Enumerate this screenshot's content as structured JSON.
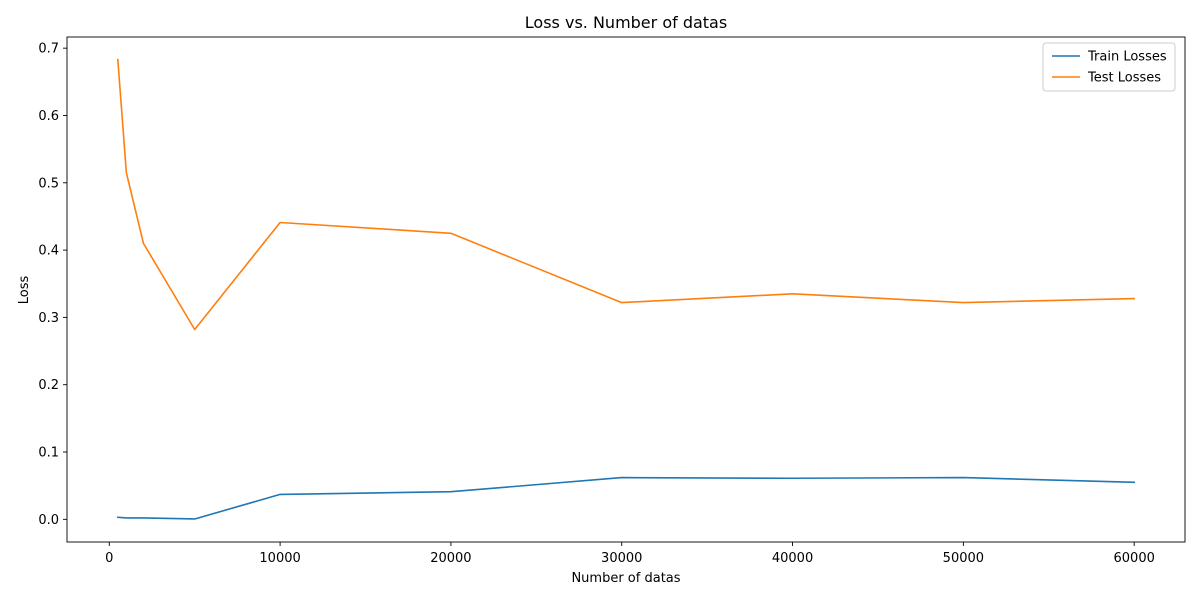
{
  "chart_data": {
    "type": "line",
    "title": "Loss vs. Number of datas",
    "xlabel": "Number of datas",
    "ylabel": "Loss",
    "x": [
      500,
      1000,
      2000,
      5000,
      10000,
      20000,
      30000,
      40000,
      50000,
      60000
    ],
    "series": [
      {
        "name": "Train Losses",
        "color": "#1f77b4",
        "values": [
          0.003,
          0.002,
          0.002,
          0.0005,
          0.037,
          0.041,
          0.062,
          0.061,
          0.062,
          0.055
        ]
      },
      {
        "name": "Test Losses",
        "color": "#ff7f0e",
        "values": [
          0.683,
          0.515,
          0.41,
          0.282,
          0.441,
          0.425,
          0.322,
          0.335,
          0.322,
          0.328
        ]
      }
    ],
    "xlim": [
      -2475,
      62975
    ],
    "ylim": [
      -0.0337,
      0.7166
    ],
    "xticks": [
      0,
      10000,
      20000,
      30000,
      40000,
      50000,
      60000
    ],
    "yticks": [
      0.0,
      0.1,
      0.2,
      0.3,
      0.4,
      0.5,
      0.6,
      0.7
    ],
    "xtick_labels": [
      "0",
      "10000",
      "20000",
      "30000",
      "40000",
      "50000",
      "60000"
    ],
    "ytick_labels": [
      "0.0",
      "0.1",
      "0.2",
      "0.3",
      "0.4",
      "0.5",
      "0.6",
      "0.7"
    ],
    "grid": false,
    "legend_position": "top-right"
  }
}
